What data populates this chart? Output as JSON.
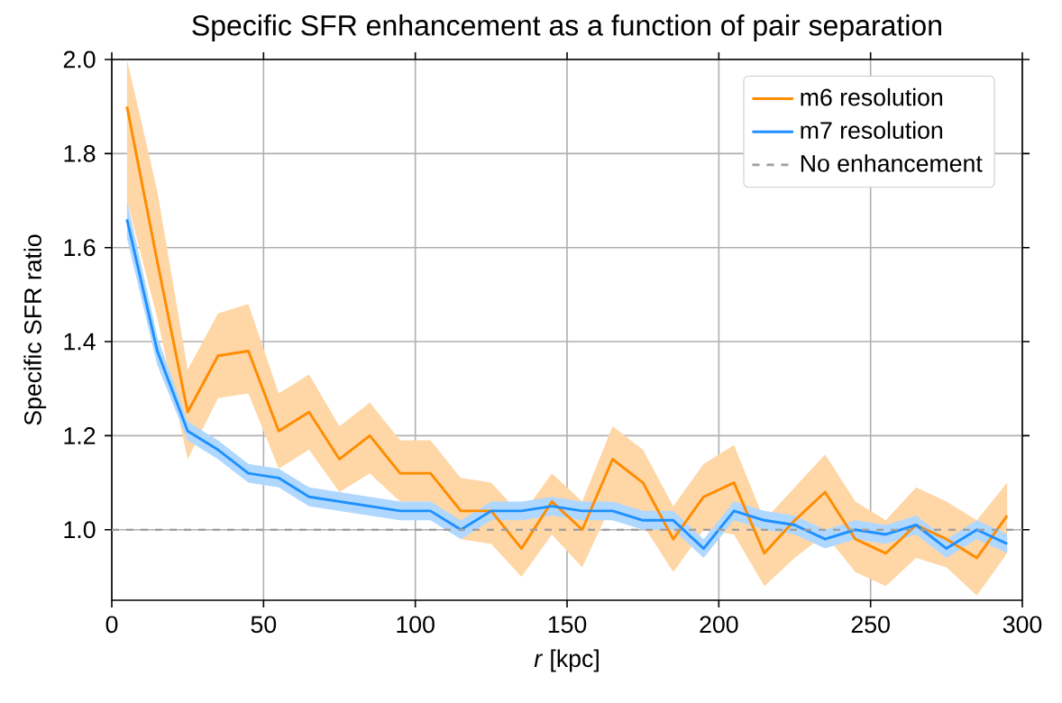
{
  "chart_data": {
    "type": "line",
    "title": "Specific SFR enhancement as a function of pair separation",
    "xlabel": "*r* [kpc]",
    "ylabel": "Specific SFR ratio",
    "x": [
      5,
      15,
      25,
      35,
      45,
      55,
      65,
      75,
      85,
      95,
      105,
      115,
      125,
      135,
      145,
      155,
      165,
      175,
      185,
      195,
      205,
      215,
      225,
      235,
      245,
      255,
      265,
      275,
      285,
      295
    ],
    "series": [
      {
        "name": "m6 resolution",
        "color": "#ff8c00",
        "values": [
          1.9,
          1.57,
          1.25,
          1.37,
          1.38,
          1.21,
          1.25,
          1.15,
          1.2,
          1.12,
          1.12,
          1.04,
          1.04,
          0.96,
          1.06,
          1.0,
          1.15,
          1.1,
          0.98,
          1.07,
          1.1,
          0.95,
          1.02,
          1.08,
          0.98,
          0.95,
          1.01,
          0.98,
          0.94,
          1.03
        ],
        "lower": [
          1.7,
          1.45,
          1.15,
          1.28,
          1.29,
          1.13,
          1.17,
          1.08,
          1.12,
          1.06,
          1.06,
          0.98,
          0.97,
          0.9,
          0.99,
          0.92,
          1.06,
          1.01,
          0.91,
          1.0,
          0.99,
          0.88,
          0.94,
          0.99,
          0.91,
          0.88,
          0.94,
          0.92,
          0.86,
          0.95
        ],
        "upper": [
          2.0,
          1.72,
          1.34,
          1.46,
          1.48,
          1.29,
          1.33,
          1.22,
          1.27,
          1.19,
          1.19,
          1.11,
          1.1,
          1.03,
          1.12,
          1.06,
          1.22,
          1.17,
          1.05,
          1.14,
          1.18,
          1.02,
          1.09,
          1.16,
          1.06,
          1.02,
          1.09,
          1.06,
          1.02,
          1.1
        ]
      },
      {
        "name": "m7 resolution",
        "color": "#1e90ff",
        "values": [
          1.66,
          1.38,
          1.21,
          1.17,
          1.12,
          1.11,
          1.07,
          1.06,
          1.05,
          1.04,
          1.04,
          1.0,
          1.04,
          1.04,
          1.05,
          1.04,
          1.04,
          1.02,
          1.02,
          0.96,
          1.04,
          1.02,
          1.01,
          0.98,
          1.0,
          0.99,
          1.01,
          0.96,
          1.0,
          0.97
        ],
        "lower": [
          1.62,
          1.35,
          1.19,
          1.15,
          1.1,
          1.09,
          1.05,
          1.04,
          1.03,
          1.02,
          1.02,
          0.98,
          1.02,
          1.02,
          1.03,
          1.02,
          1.02,
          1.0,
          1.0,
          0.94,
          1.02,
          1.0,
          0.99,
          0.96,
          0.98,
          0.97,
          0.99,
          0.94,
          0.98,
          0.95
        ],
        "upper": [
          1.7,
          1.41,
          1.23,
          1.19,
          1.14,
          1.13,
          1.09,
          1.08,
          1.07,
          1.06,
          1.06,
          1.02,
          1.06,
          1.06,
          1.07,
          1.06,
          1.06,
          1.04,
          1.04,
          0.98,
          1.06,
          1.04,
          1.03,
          1.0,
          1.02,
          1.01,
          1.03,
          0.98,
          1.02,
          0.99
        ]
      }
    ],
    "ref_lines": [
      {
        "axis": "y",
        "value": 1.0,
        "label": "No enhancement",
        "color": "#a0a0a0",
        "line_style": "dashed"
      }
    ],
    "xlim": [
      0,
      300
    ],
    "ylim": [
      0.85,
      2.0
    ],
    "xticks": [
      0,
      50,
      100,
      150,
      200,
      250,
      300
    ],
    "yticks": [
      {
        "value": 1.0,
        "label": "1.0"
      },
      {
        "value": 1.2,
        "label": "1.2"
      },
      {
        "value": 1.4,
        "label": "1.4"
      },
      {
        "value": 1.6,
        "label": "1.6"
      },
      {
        "value": 1.8,
        "label": "1.8"
      },
      {
        "value": 2.0,
        "label": "2.0"
      }
    ],
    "grid": true,
    "legend": "top right"
  }
}
